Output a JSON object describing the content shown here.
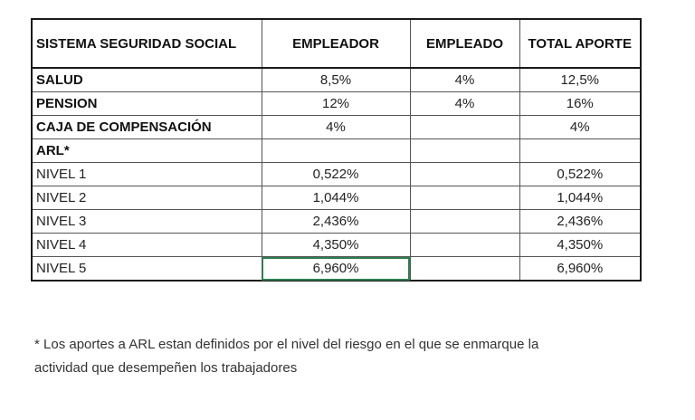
{
  "table": {
    "headers": [
      "SISTEMA SEGURIDAD SOCIAL",
      "EMPLEADOR",
      "EMPLEADO",
      "TOTAL APORTE"
    ],
    "rows": [
      {
        "label": "SALUD",
        "bold": true,
        "empleador": "8,5%",
        "empleado": "4%",
        "total": "12,5%"
      },
      {
        "label": "PENSION",
        "bold": true,
        "empleador": "12%",
        "empleado": "4%",
        "total": "16%"
      },
      {
        "label": "CAJA DE COMPENSACIÓN",
        "bold": true,
        "empleador": "4%",
        "empleado": "",
        "total": "4%"
      },
      {
        "label": "ARL*",
        "bold": true,
        "empleador": "",
        "empleado": "",
        "total": ""
      },
      {
        "label": "NIVEL 1",
        "bold": false,
        "empleador": "0,522%",
        "empleado": "",
        "total": "0,522%"
      },
      {
        "label": "NIVEL 2",
        "bold": false,
        "empleador": "1,044%",
        "empleado": "",
        "total": "1,044%"
      },
      {
        "label": "NIVEL 3",
        "bold": false,
        "empleador": "2,436%",
        "empleado": "",
        "total": "2,436%"
      },
      {
        "label": "NIVEL 4",
        "bold": false,
        "empleador": "4,350%",
        "empleado": "",
        "total": "4,350%"
      },
      {
        "label": "NIVEL 5",
        "bold": false,
        "empleador": "6,960%",
        "empleado": "",
        "total": "6,960%"
      }
    ],
    "selected_cell": {
      "row": 8,
      "column": "empleador"
    },
    "selection_color": "#2e7d4f"
  },
  "footnote": {
    "line1": "* Los aportes a ARL estan definidos por el nivel del riesgo en el que se enmarque la",
    "line2": "actividad que desempeñen los trabajadores"
  }
}
